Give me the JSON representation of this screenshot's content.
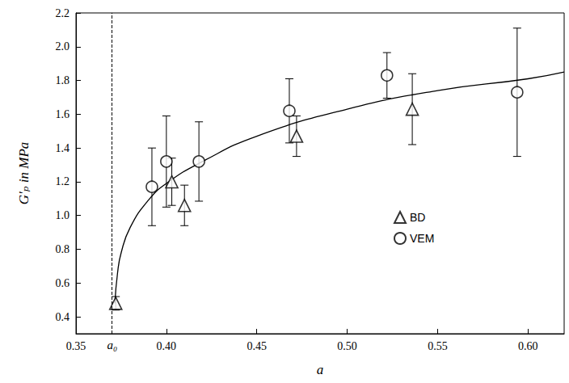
{
  "chart_data": {
    "type": "scatter",
    "xlabel": "a",
    "ylabel": "G′ₚ in MPa",
    "xlim": [
      0.35,
      0.62
    ],
    "ylim": [
      0.3,
      2.2
    ],
    "xticks": [
      0.35,
      {
        "value": 0.4,
        "label": "0.40"
      },
      0.45,
      {
        "value": 0.5,
        "label": "0.50"
      },
      0.55,
      {
        "value": 0.6,
        "label": "0.60"
      }
    ],
    "yticks": [
      0.4,
      0.6,
      0.8,
      {
        "value": 1.0,
        "label": "1.0"
      },
      1.2,
      1.4,
      1.6,
      1.8,
      {
        "value": 2.0,
        "label": "2.0"
      },
      2.2
    ],
    "grid": false,
    "legend": "right",
    "series": [
      {
        "name": "BD",
        "type": "scatter",
        "marker": "triangle",
        "color": "#000000",
        "x": [
          0.372,
          0.403,
          0.41,
          0.472,
          0.536
        ],
        "values": [
          0.48,
          1.2,
          1.06,
          1.47,
          1.63
        ],
        "errors": [
          0.04,
          0.14,
          0.12,
          0.12,
          0.21
        ]
      },
      {
        "name": "VEM",
        "type": "scatter",
        "marker": "circle",
        "color": "#000000",
        "x": [
          0.392,
          0.4,
          0.418,
          0.468,
          0.522,
          0.594
        ],
        "values": [
          1.17,
          1.32,
          1.32,
          1.62,
          1.83,
          1.73
        ],
        "errors": [
          0.23,
          0.27,
          0.235,
          0.19,
          0.135,
          0.38
        ]
      },
      {
        "type": "line",
        "line_style": "solid",
        "color": "#000000",
        "x": [
          0.3715,
          0.373,
          0.375,
          0.38,
          0.39,
          0.4,
          0.42,
          0.45,
          0.5,
          0.55,
          0.6,
          0.62
        ],
        "values": [
          0.48,
          0.66,
          0.78,
          0.93,
          1.09,
          1.19,
          1.32,
          1.47,
          1.63,
          1.74,
          1.81,
          1.85
        ]
      }
    ],
    "annotations": [
      {
        "text": "a₀",
        "x": 0.369,
        "line_style": "dashed"
      }
    ]
  }
}
